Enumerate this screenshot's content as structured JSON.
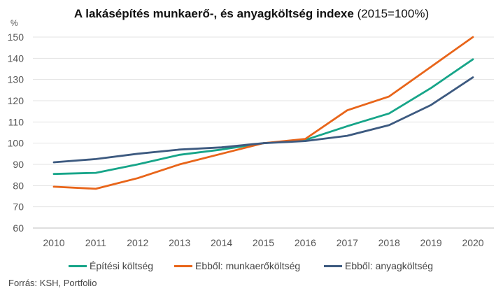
{
  "page": {
    "title_bold": "A lakásépítés munkaerő-, és anyagköltség indexe",
    "title_regular": " (2015=100%)",
    "unit_label": "%",
    "source": "Forrás: KSH, Portfolio"
  },
  "chart_data": {
    "type": "line",
    "title": "A lakásépítés munkaerő-, és anyagköltség indexe (2015=100%)",
    "xlabel": "",
    "ylabel": "%",
    "x": [
      "2010",
      "2011",
      "2012",
      "2013",
      "2014",
      "2015",
      "2016",
      "2017",
      "2018",
      "2019",
      "2020"
    ],
    "ylim": [
      60,
      150
    ],
    "yticks": [
      "60",
      "70",
      "80",
      "90",
      "100",
      "110",
      "120",
      "130",
      "140",
      "150"
    ],
    "grid": true,
    "legend_position": "bottom",
    "series": [
      {
        "name": "Építési költség",
        "color": "#17a589",
        "values": [
          85.5,
          86,
          90,
          94.5,
          97,
          100,
          101.5,
          108,
          114,
          126,
          139.5
        ]
      },
      {
        "name": "Ebből: munkaerőköltség",
        "color": "#e8651a",
        "values": [
          79.5,
          78.5,
          83.5,
          90,
          95,
          100,
          102,
          115.5,
          122,
          136,
          150
        ]
      },
      {
        "name": "Ebből: anyagköltség",
        "color": "#3d5a80",
        "values": [
          91,
          92.5,
          95,
          97,
          98,
          100,
          101,
          103.5,
          108.5,
          118,
          131
        ]
      }
    ]
  }
}
